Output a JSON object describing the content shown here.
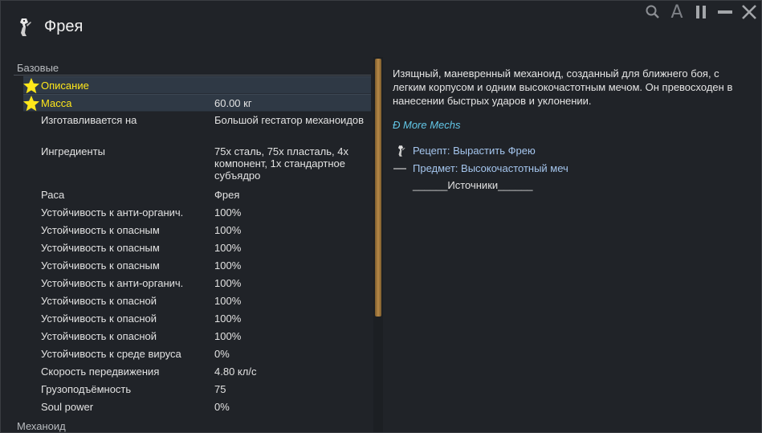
{
  "header": {
    "title": "Фрея",
    "icon": "mech-icon",
    "controls": [
      "search-icon",
      "font-a-icon",
      "pause-icon",
      "minimize-icon",
      "close-icon"
    ],
    "font_toggle_label": "A"
  },
  "stats": {
    "category_base": "Базовые",
    "category_mech": "Механоид",
    "rows": [
      {
        "label": "Описание",
        "value": "",
        "favorite": true,
        "highlight": true
      },
      {
        "label": "Масса",
        "value": "60.00 кг",
        "favorite": true,
        "highlight": true
      },
      {
        "label": "Изготавливается на",
        "value": "Большой гестатор механоидов"
      },
      {
        "label": "Ингредиенты",
        "value": "75x сталь, 75x пласталь, 4x компонент, 1x стандартное субъядро"
      },
      {
        "label": "Раса",
        "value": "Фрея"
      },
      {
        "label": "Устойчивость к анти-органич.",
        "value": "100%"
      },
      {
        "label": "Устойчивость к опасным",
        "value": "100%"
      },
      {
        "label": "Устойчивость к опасным",
        "value": "100%"
      },
      {
        "label": "Устойчивость к опасным",
        "value": "100%"
      },
      {
        "label": "Устойчивость к анти-органич.",
        "value": "100%"
      },
      {
        "label": "Устойчивость к опасной",
        "value": "100%"
      },
      {
        "label": "Устойчивость к опасной",
        "value": "100%"
      },
      {
        "label": "Устойчивость к опасной",
        "value": "100%"
      },
      {
        "label": "Устойчивость к среде вируса",
        "value": "0%"
      },
      {
        "label": "Скорость передвижения",
        "value": "4.80 кл/с"
      },
      {
        "label": "Грузоподъёмность",
        "value": "75"
      },
      {
        "label": "Soul power",
        "value": "0%"
      }
    ]
  },
  "info": {
    "description": "Изящный, маневренный механоид, созданный для ближнего боя, с легким корпусом и одним высокочастотным мечом. Он превосходен в нанесении быстрых ударов и уклонении.",
    "mod_name": "Ð More Mechs",
    "links": [
      {
        "icon": "mech-icon",
        "text": "Рецепт: Вырастить Фрею"
      },
      {
        "icon": "sword-icon",
        "text": "Предмет: Высокочастотный меч"
      }
    ],
    "sources": "______Источники______"
  },
  "colors": {
    "favorite_text": "#ffe71a",
    "highlight_row": "#2f3945",
    "link": "#a5c6ee",
    "mod_name": "#62c6e6",
    "scroll_thumb": "#b88a48"
  }
}
